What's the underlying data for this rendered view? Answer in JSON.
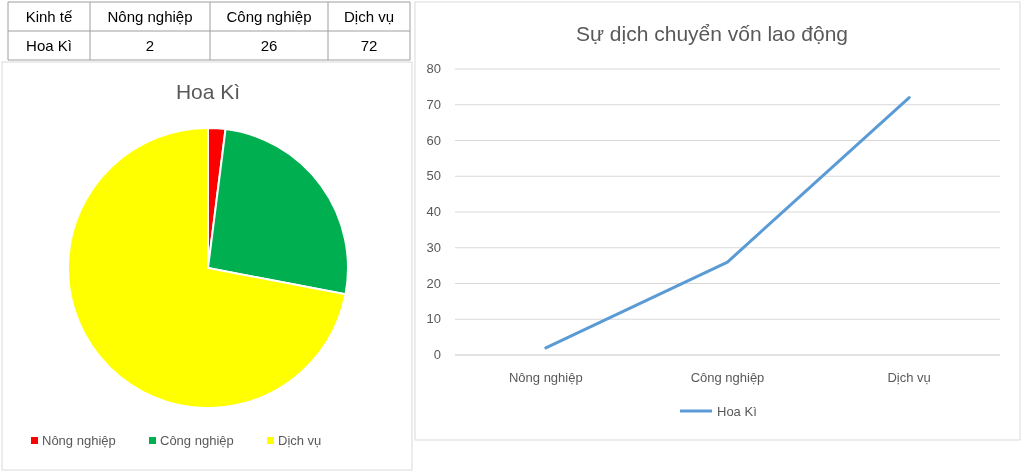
{
  "chart_data": [
    {
      "type": "other",
      "xlabel": "Kinh tế",
      "ylabel": "Hoa Kì",
      "categories": [
        "Nông nghiệp",
        "Công nghiệp",
        "Dịch vụ"
      ],
      "values": [
        2,
        26,
        72
      ],
      "data_labels": true
    },
    {
      "type": "pie",
      "title": "Hoa Kì",
      "categories": [
        "Nông nghiệp",
        "Công nghiệp",
        "Dịch vụ"
      ],
      "values": [
        2,
        26,
        72
      ],
      "colors": [
        "#ff0000",
        "#00b050",
        "#ffff00"
      ],
      "legend": "bottom"
    },
    {
      "type": "line",
      "title": "Sự dịch chuyển vốn lao động",
      "categories": [
        "Nông nghiệp",
        "Công nghiệp",
        "Dịch vụ"
      ],
      "series": [
        {
          "name": "Hoa Kì",
          "color": "#5b9bd5",
          "values": [
            2,
            26,
            72
          ]
        }
      ],
      "ylim": [
        0,
        80
      ],
      "yticks": [
        0,
        10,
        20,
        30,
        40,
        50,
        60,
        70,
        80
      ],
      "grid": "y",
      "legend": "bottom"
    }
  ]
}
